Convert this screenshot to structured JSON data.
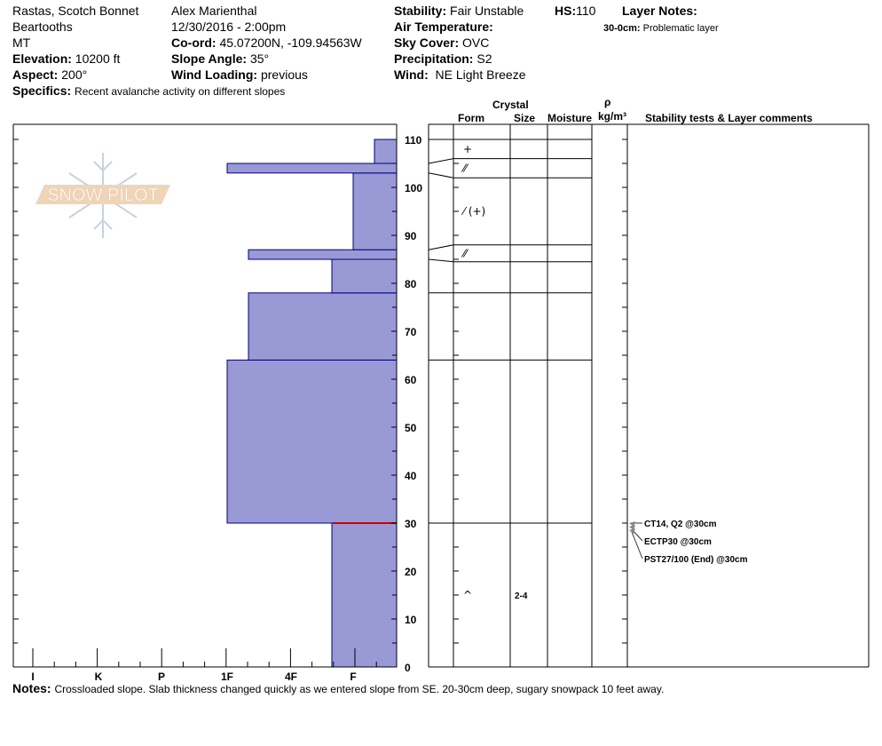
{
  "header": {
    "location": "Rastas, Scotch Bonnet",
    "range": "Beartooths",
    "state": "MT",
    "elevation_label": "Elevation:",
    "elevation": "10200 ft",
    "aspect_label": "Aspect:",
    "aspect": "200°",
    "observer": "Alex Marienthal",
    "datetime": "12/30/2016 - 2:00pm",
    "coord_label": "Co-ord:",
    "coord": "45.07200N, -109.94563W",
    "slope_label": "Slope Angle:",
    "slope": "35°",
    "wind_loading_label": "Wind Loading:",
    "wind_loading": "previous",
    "specifics_label": "Specifics:",
    "specifics": "Recent avalanche activity on different slopes",
    "stability_label": "Stability:",
    "stability": "Fair Unstable",
    "hs_label": "HS:",
    "hs": "110",
    "air_temp_label": "Air Temperature:",
    "sky_label": "Sky Cover:",
    "sky": "OVC",
    "precip_label": "Precipitation:",
    "precip": "S2",
    "wind_label": "Wind:",
    "wind": "NE Light Breeze",
    "layer_notes_label": "Layer Notes:",
    "layer_note_range": "30-0cm:",
    "layer_note_text": "Problematic layer"
  },
  "logo": {
    "text": "SNOW PILOT"
  },
  "columns": {
    "crystal": "Crystal",
    "form": "Form",
    "size": "Size",
    "moisture": "Moisture",
    "rho": "ρ",
    "density": "kg/m³",
    "comments": "Stability tests & Layer comments"
  },
  "chart_data": {
    "type": "snow-profile",
    "hardness_labels": [
      "I",
      "K",
      "P",
      "1F",
      "4F",
      "F"
    ],
    "height_ticks": [
      0,
      10,
      20,
      30,
      40,
      50,
      60,
      70,
      80,
      90,
      100,
      110
    ],
    "height_range": [
      0,
      110
    ],
    "hardness_layers": [
      {
        "bottom": 0,
        "top": 30,
        "hardness": "F-"
      },
      {
        "bottom": 30,
        "top": 64,
        "hardness": "1F"
      },
      {
        "bottom": 64,
        "top": 78,
        "hardness": "1F+"
      },
      {
        "bottom": 78,
        "top": 85,
        "hardness": "F-"
      },
      {
        "bottom": 85,
        "top": 87,
        "hardness": "1F+"
      },
      {
        "bottom": 87,
        "top": 103,
        "hardness": "F"
      },
      {
        "bottom": 103,
        "top": 105,
        "hardness": "1F"
      },
      {
        "bottom": 105,
        "top": 110,
        "hardness": "F+"
      }
    ],
    "problem_layer_height": 30,
    "fill_color": "#9999d6",
    "problem_color": "#cc0000",
    "grid_layers": [
      {
        "top": 110,
        "bottom": 106,
        "form": "+",
        "size": ""
      },
      {
        "top": 106,
        "bottom": 102,
        "form": "⁄⁄",
        "size": ""
      },
      {
        "top": 102,
        "bottom": 88,
        "form": "⁄ (+)",
        "size": ""
      },
      {
        "top": 88,
        "bottom": 84.5,
        "form": "⁄⁄",
        "size": ""
      },
      {
        "top": 84.5,
        "bottom": 78,
        "form": "",
        "size": ""
      },
      {
        "top": 78,
        "bottom": 64,
        "form": "",
        "size": ""
      },
      {
        "top": 64,
        "bottom": 30,
        "form": "",
        "size": ""
      },
      {
        "top": 30,
        "bottom": 0,
        "form": "^",
        "size": "2-4"
      }
    ],
    "stability_tests": [
      "CT14, Q2 @30cm",
      "ECTP30 @30cm",
      "PST27/100 (End) @30cm"
    ]
  },
  "notes": {
    "label": "Notes:",
    "text": "Crossloaded slope. Slab thickness changed quickly as we entered slope from SE. 20-30cm deep, sugary snowpack 10 feet away."
  }
}
